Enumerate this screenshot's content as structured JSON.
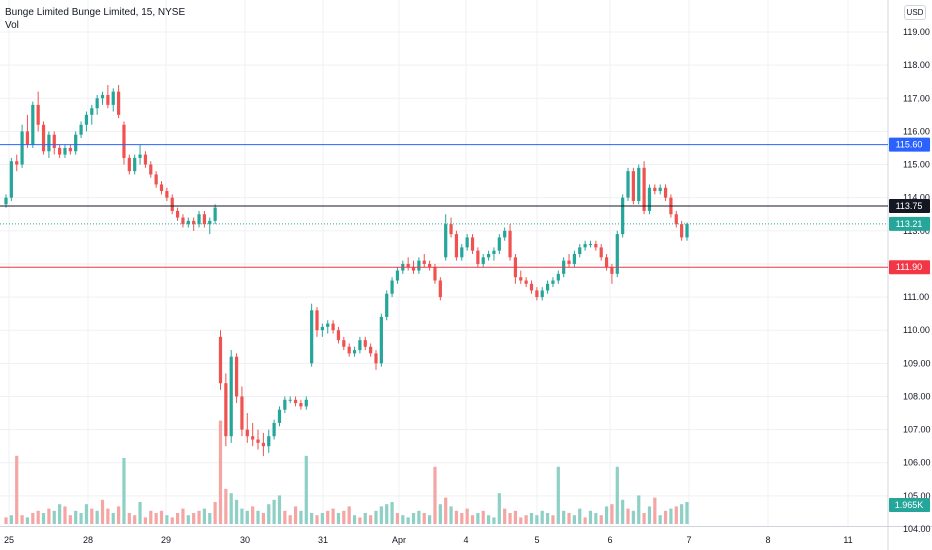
{
  "header": {
    "title": "Bunge Limited Bunge Limited, 15, NYSE",
    "volume_label": "Vol"
  },
  "currency_badge": "USD",
  "colors": {
    "up": "#26a69a",
    "down": "#ef5350",
    "up_volume": "#8fd0c6",
    "down_volume": "#f4a6a4",
    "grid": "#eef0f3",
    "axis_text": "#131722",
    "line_blue": "#2962ff",
    "line_black": "#131722",
    "line_red": "#f23645",
    "current_price": "#26a69a"
  },
  "chart_data": {
    "type": "candlestick",
    "symbol": "Bunge Limited",
    "interval": "15",
    "exchange": "NYSE",
    "y_ticks": [
      104.0,
      105.0,
      106.0,
      107.0,
      108.0,
      109.0,
      110.0,
      111.0,
      112.0,
      113.0,
      114.0,
      115.0,
      116.0,
      117.0,
      118.0,
      119.0
    ],
    "x_ticks": [
      "25",
      "28",
      "29",
      "30",
      "31",
      "Apr",
      "4",
      "5",
      "6",
      "7",
      "8",
      "11"
    ],
    "ylim": [
      103.7,
      119.6
    ],
    "horizontal_lines": [
      {
        "price": 115.6,
        "label": "115.60",
        "color": "#2962ff"
      },
      {
        "price": 113.75,
        "label": "113.75",
        "color": "#131722"
      },
      {
        "price": 111.9,
        "label": "111.90",
        "color": "#f23645"
      }
    ],
    "current_price": {
      "price": 113.21,
      "label": "113.21"
    },
    "volume_label": "1.965K",
    "candles": [
      [
        113.8,
        114.1,
        113.7,
        114.0
      ],
      [
        114.0,
        115.2,
        113.9,
        115.1
      ],
      [
        115.1,
        115.3,
        114.8,
        115.0
      ],
      [
        115.0,
        116.2,
        114.9,
        116.0
      ],
      [
        116.0,
        116.5,
        115.5,
        115.6
      ],
      [
        115.6,
        116.9,
        115.5,
        116.8
      ],
      [
        116.8,
        117.2,
        116.0,
        116.2
      ],
      [
        116.2,
        116.3,
        115.3,
        115.4
      ],
      [
        115.4,
        116.0,
        115.2,
        115.9
      ],
      [
        115.9,
        116.0,
        115.3,
        115.5
      ],
      [
        115.5,
        115.6,
        115.2,
        115.3
      ],
      [
        115.3,
        115.6,
        115.2,
        115.5
      ],
      [
        115.5,
        115.6,
        115.3,
        115.4
      ],
      [
        115.4,
        116.0,
        115.3,
        115.9
      ],
      [
        115.9,
        116.3,
        115.8,
        116.2
      ],
      [
        116.2,
        116.6,
        116.0,
        116.5
      ],
      [
        116.5,
        116.8,
        116.2,
        116.7
      ],
      [
        116.7,
        117.1,
        116.5,
        117.0
      ],
      [
        117.0,
        117.2,
        116.8,
        117.1
      ],
      [
        117.1,
        117.4,
        116.7,
        116.8
      ],
      [
        116.8,
        117.3,
        116.6,
        117.2
      ],
      [
        117.2,
        117.4,
        116.4,
        116.5
      ],
      [
        116.2,
        116.3,
        115.0,
        115.2
      ],
      [
        115.2,
        115.3,
        114.7,
        114.8
      ],
      [
        114.8,
        115.3,
        114.7,
        115.2
      ],
      [
        115.2,
        115.6,
        115.0,
        115.3
      ],
      [
        115.3,
        115.4,
        114.9,
        115.0
      ],
      [
        115.0,
        115.1,
        114.6,
        114.7
      ],
      [
        114.7,
        114.8,
        114.3,
        114.4
      ],
      [
        114.4,
        114.5,
        114.1,
        114.2
      ],
      [
        114.2,
        114.3,
        113.9,
        114.0
      ],
      [
        114.0,
        114.1,
        113.5,
        113.6
      ],
      [
        113.6,
        113.7,
        113.3,
        113.4
      ],
      [
        113.4,
        113.5,
        113.1,
        113.2
      ],
      [
        113.2,
        113.4,
        113.1,
        113.3
      ],
      [
        113.3,
        113.4,
        113.0,
        113.2
      ],
      [
        113.2,
        113.6,
        113.1,
        113.5
      ],
      [
        113.5,
        113.6,
        113.1,
        113.2
      ],
      [
        113.2,
        113.4,
        112.9,
        113.3
      ],
      [
        113.3,
        113.8,
        113.2,
        113.7
      ],
      [
        109.8,
        110.0,
        108.2,
        108.4
      ],
      [
        108.4,
        108.7,
        106.5,
        106.8
      ],
      [
        106.8,
        109.4,
        106.6,
        109.2
      ],
      [
        109.2,
        109.3,
        107.8,
        108.0
      ],
      [
        108.0,
        108.3,
        106.8,
        107.0
      ],
      [
        107.0,
        107.5,
        106.6,
        106.8
      ],
      [
        106.8,
        107.2,
        106.5,
        106.7
      ],
      [
        106.7,
        107.0,
        106.4,
        106.6
      ],
      [
        106.6,
        106.9,
        106.2,
        106.5
      ],
      [
        106.5,
        107.0,
        106.3,
        106.8
      ],
      [
        106.8,
        107.3,
        106.7,
        107.2
      ],
      [
        107.2,
        107.7,
        107.1,
        107.6
      ],
      [
        107.6,
        108.0,
        107.5,
        107.9
      ],
      [
        107.9,
        108.0,
        107.8,
        107.9
      ],
      [
        107.9,
        108.0,
        107.7,
        107.8
      ],
      [
        107.8,
        107.9,
        107.6,
        107.7
      ],
      [
        107.7,
        108.0,
        107.6,
        107.9
      ],
      [
        109.0,
        110.8,
        108.9,
        110.6
      ],
      [
        110.6,
        110.7,
        109.8,
        110.0
      ],
      [
        110.0,
        110.2,
        109.8,
        110.1
      ],
      [
        110.1,
        110.3,
        109.9,
        110.2
      ],
      [
        110.2,
        110.3,
        109.9,
        110.0
      ],
      [
        110.0,
        110.1,
        109.6,
        109.7
      ],
      [
        109.7,
        109.8,
        109.4,
        109.5
      ],
      [
        109.5,
        109.6,
        109.2,
        109.3
      ],
      [
        109.3,
        109.5,
        109.2,
        109.4
      ],
      [
        109.4,
        109.8,
        109.3,
        109.7
      ],
      [
        109.7,
        109.8,
        109.4,
        109.5
      ],
      [
        109.5,
        109.6,
        109.2,
        109.3
      ],
      [
        109.3,
        109.4,
        108.8,
        109.0
      ],
      [
        109.0,
        110.5,
        108.9,
        110.4
      ],
      [
        110.4,
        111.2,
        110.3,
        111.1
      ],
      [
        111.1,
        111.6,
        111.0,
        111.5
      ],
      [
        111.5,
        111.9,
        111.4,
        111.8
      ],
      [
        111.8,
        112.1,
        111.7,
        112.0
      ],
      [
        112.0,
        112.2,
        111.8,
        111.9
      ],
      [
        111.9,
        112.1,
        111.7,
        111.8
      ],
      [
        111.8,
        112.2,
        111.7,
        112.1
      ],
      [
        112.1,
        112.3,
        111.9,
        112.0
      ],
      [
        112.0,
        112.1,
        111.8,
        111.9
      ],
      [
        111.9,
        112.0,
        111.4,
        111.5
      ],
      [
        111.5,
        111.6,
        110.9,
        111.0
      ],
      [
        112.2,
        113.5,
        112.1,
        113.2
      ],
      [
        113.2,
        113.4,
        112.8,
        112.9
      ],
      [
        112.9,
        113.0,
        112.1,
        112.2
      ],
      [
        112.2,
        112.6,
        112.1,
        112.5
      ],
      [
        112.5,
        112.9,
        112.4,
        112.8
      ],
      [
        112.8,
        112.9,
        112.3,
        112.4
      ],
      [
        112.4,
        112.5,
        111.9,
        112.0
      ],
      [
        112.0,
        112.3,
        111.9,
        112.2
      ],
      [
        112.2,
        112.4,
        112.1,
        112.3
      ],
      [
        112.3,
        112.5,
        112.1,
        112.4
      ],
      [
        112.4,
        112.9,
        112.3,
        112.8
      ],
      [
        112.8,
        113.1,
        112.7,
        113.0
      ],
      [
        113.0,
        113.2,
        112.1,
        112.2
      ],
      [
        112.2,
        112.3,
        111.4,
        111.6
      ],
      [
        111.6,
        111.8,
        111.4,
        111.5
      ],
      [
        111.5,
        111.6,
        111.3,
        111.4
      ],
      [
        111.4,
        111.5,
        111.1,
        111.2
      ],
      [
        111.2,
        111.3,
        110.9,
        111.0
      ],
      [
        111.0,
        111.3,
        110.9,
        111.2
      ],
      [
        111.2,
        111.5,
        111.1,
        111.4
      ],
      [
        111.4,
        111.6,
        111.3,
        111.5
      ],
      [
        111.5,
        111.8,
        111.4,
        111.7
      ],
      [
        111.7,
        112.2,
        111.6,
        112.1
      ],
      [
        112.1,
        112.3,
        111.9,
        112.0
      ],
      [
        112.0,
        112.4,
        111.9,
        112.3
      ],
      [
        112.3,
        112.6,
        112.2,
        112.5
      ],
      [
        112.5,
        112.7,
        112.4,
        112.6
      ],
      [
        112.6,
        112.7,
        112.5,
        112.6
      ],
      [
        112.6,
        112.7,
        112.4,
        112.5
      ],
      [
        112.5,
        112.6,
        112.1,
        112.2
      ],
      [
        112.2,
        112.3,
        111.8,
        111.9
      ],
      [
        111.9,
        112.0,
        111.4,
        111.7
      ],
      [
        111.7,
        113.0,
        111.6,
        112.9
      ],
      [
        112.9,
        114.1,
        112.8,
        114.0
      ],
      [
        114.0,
        114.9,
        113.9,
        114.8
      ],
      [
        114.8,
        114.9,
        113.8,
        113.9
      ],
      [
        113.9,
        115.0,
        113.8,
        114.9
      ],
      [
        114.9,
        115.1,
        113.5,
        113.6
      ],
      [
        113.6,
        114.4,
        113.5,
        114.3
      ],
      [
        114.3,
        114.4,
        114.1,
        114.2
      ],
      [
        114.2,
        114.4,
        114.1,
        114.3
      ],
      [
        114.3,
        114.4,
        113.9,
        114.0
      ],
      [
        114.0,
        114.1,
        113.4,
        113.5
      ],
      [
        113.5,
        113.6,
        113.1,
        113.2
      ],
      [
        113.2,
        113.3,
        112.7,
        112.8
      ],
      [
        112.8,
        113.25,
        112.7,
        113.21
      ]
    ],
    "volumes": [
      [
        0.3,
        0
      ],
      [
        0.4,
        1
      ],
      [
        3.1,
        0
      ],
      [
        0.4,
        0
      ],
      [
        0.3,
        1
      ],
      [
        0.5,
        0
      ],
      [
        0.6,
        0
      ],
      [
        0.5,
        1
      ],
      [
        0.7,
        0
      ],
      [
        0.6,
        1
      ],
      [
        0.9,
        1
      ],
      [
        0.8,
        0
      ],
      [
        0.4,
        0
      ],
      [
        0.6,
        1
      ],
      [
        0.5,
        1
      ],
      [
        0.9,
        1
      ],
      [
        0.7,
        0
      ],
      [
        0.6,
        1
      ],
      [
        1.1,
        0
      ],
      [
        0.7,
        0
      ],
      [
        0.5,
        1
      ],
      [
        0.8,
        0
      ],
      [
        3.0,
        1
      ],
      [
        0.5,
        0
      ],
      [
        0.4,
        0
      ],
      [
        1.0,
        1
      ],
      [
        0.3,
        0
      ],
      [
        0.6,
        0
      ],
      [
        0.5,
        0
      ],
      [
        0.6,
        0
      ],
      [
        0.4,
        1
      ],
      [
        0.3,
        0
      ],
      [
        0.5,
        0
      ],
      [
        0.7,
        0
      ],
      [
        0.4,
        1
      ],
      [
        0.5,
        0
      ],
      [
        0.6,
        0
      ],
      [
        0.7,
        1
      ],
      [
        0.5,
        1
      ],
      [
        1.0,
        0
      ],
      [
        4.7,
        0
      ],
      [
        1.6,
        0
      ],
      [
        1.4,
        1
      ],
      [
        1.1,
        1
      ],
      [
        0.7,
        1
      ],
      [
        0.6,
        1
      ],
      [
        0.8,
        0
      ],
      [
        0.6,
        1
      ],
      [
        0.5,
        0
      ],
      [
        0.9,
        1
      ],
      [
        1.1,
        1
      ],
      [
        1.3,
        1
      ],
      [
        0.6,
        0
      ],
      [
        0.4,
        0
      ],
      [
        0.8,
        0
      ],
      [
        0.6,
        1
      ],
      [
        3.1,
        1
      ],
      [
        0.5,
        1
      ],
      [
        0.4,
        0
      ],
      [
        0.5,
        1
      ],
      [
        0.6,
        0
      ],
      [
        0.7,
        0
      ],
      [
        0.5,
        1
      ],
      [
        0.6,
        0
      ],
      [
        0.8,
        0
      ],
      [
        0.4,
        1
      ],
      [
        0.3,
        0
      ],
      [
        0.5,
        1
      ],
      [
        0.4,
        0
      ],
      [
        0.6,
        1
      ],
      [
        0.8,
        1
      ],
      [
        0.9,
        1
      ],
      [
        1.0,
        1
      ],
      [
        0.5,
        0
      ],
      [
        0.4,
        1
      ],
      [
        0.3,
        1
      ],
      [
        0.5,
        1
      ],
      [
        0.6,
        1
      ],
      [
        0.5,
        0
      ],
      [
        0.4,
        1
      ],
      [
        2.6,
        0
      ],
      [
        0.9,
        1
      ],
      [
        1.2,
        0
      ],
      [
        0.8,
        1
      ],
      [
        0.6,
        0
      ],
      [
        0.5,
        0
      ],
      [
        0.7,
        0
      ],
      [
        0.4,
        0
      ],
      [
        0.5,
        1
      ],
      [
        0.6,
        0
      ],
      [
        0.4,
        1
      ],
      [
        0.3,
        1
      ],
      [
        1.4,
        1
      ],
      [
        0.7,
        0
      ],
      [
        0.5,
        0
      ],
      [
        0.6,
        0
      ],
      [
        0.3,
        0
      ],
      [
        0.4,
        0
      ],
      [
        0.5,
        1
      ],
      [
        0.4,
        1
      ],
      [
        0.6,
        1
      ],
      [
        0.5,
        1
      ],
      [
        0.4,
        0
      ],
      [
        2.6,
        1
      ],
      [
        0.6,
        1
      ],
      [
        0.5,
        0
      ],
      [
        0.4,
        1
      ],
      [
        0.7,
        1
      ],
      [
        0.3,
        0
      ],
      [
        0.6,
        1
      ],
      [
        0.5,
        1
      ],
      [
        0.4,
        0
      ],
      [
        0.8,
        1
      ],
      [
        0.9,
        0
      ],
      [
        2.6,
        1
      ],
      [
        1.1,
        1
      ],
      [
        0.7,
        0
      ],
      [
        0.6,
        1
      ],
      [
        1.3,
        1
      ],
      [
        0.5,
        0
      ],
      [
        0.8,
        1
      ],
      [
        1.2,
        0
      ],
      [
        0.4,
        1
      ],
      [
        0.6,
        0
      ],
      [
        0.7,
        1
      ],
      [
        0.8,
        0
      ],
      [
        0.9,
        1
      ],
      [
        1.0,
        1
      ]
    ]
  }
}
